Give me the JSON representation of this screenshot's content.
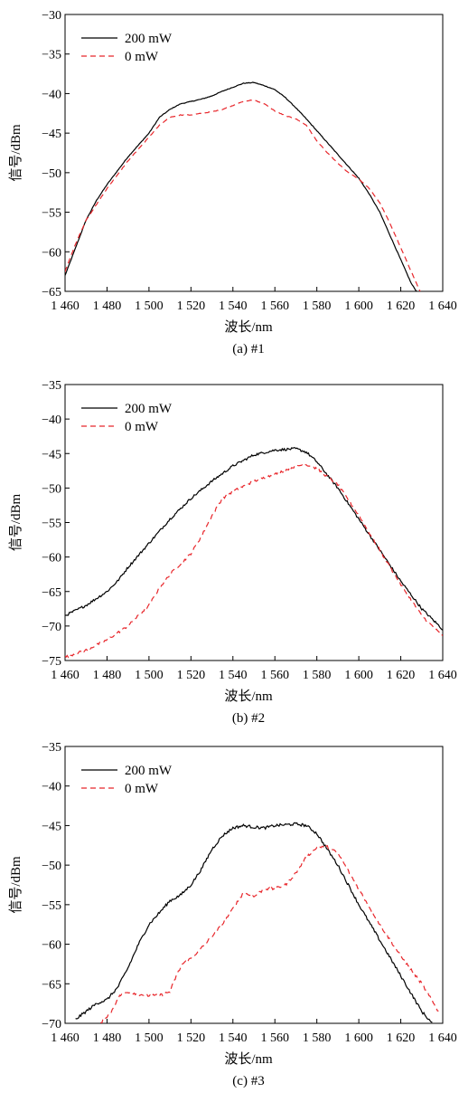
{
  "chart_data": [
    {
      "type": "line",
      "caption": "(a) #1",
      "xlabel": "波长/nm",
      "ylabel": "信号/dBm",
      "xlim": [
        1460,
        1640
      ],
      "ylim": [
        -65,
        -30
      ],
      "xticks": [
        "1 460",
        "1 480",
        "1 500",
        "1 520",
        "1 540",
        "1 560",
        "1 580",
        "1 600",
        "1 620",
        "1 640"
      ],
      "yticks": [
        "−30",
        "−35",
        "−40",
        "−45",
        "−50",
        "−55",
        "−60",
        "−65"
      ],
      "legend": "top-left",
      "series": [
        {
          "name": "200 mW",
          "color": "#000000",
          "dash": "solid",
          "x": [
            1460,
            1465,
            1470,
            1475,
            1480,
            1490,
            1500,
            1505,
            1510,
            1515,
            1520,
            1525,
            1530,
            1535,
            1540,
            1545,
            1550,
            1555,
            1560,
            1565,
            1570,
            1575,
            1580,
            1585,
            1590,
            1595,
            1600,
            1605,
            1610,
            1615,
            1620,
            1625,
            1630
          ],
          "y": [
            -63,
            -59.5,
            -56,
            -53.5,
            -51.5,
            -48,
            -45,
            -43,
            -42,
            -41.3,
            -41,
            -40.7,
            -40.3,
            -39.7,
            -39.2,
            -38.7,
            -38.6,
            -39,
            -39.5,
            -40.5,
            -41.8,
            -43.2,
            -44.7,
            -46.2,
            -47.7,
            -49.2,
            -50.7,
            -52.7,
            -55,
            -58,
            -61,
            -64,
            -66
          ]
        },
        {
          "name": "0 mW",
          "color": "#e8262b",
          "dash": "dashed",
          "x": [
            1460,
            1465,
            1470,
            1475,
            1480,
            1490,
            1500,
            1505,
            1510,
            1515,
            1520,
            1525,
            1530,
            1535,
            1540,
            1545,
            1550,
            1555,
            1560,
            1565,
            1570,
            1575,
            1580,
            1585,
            1590,
            1595,
            1600,
            1605,
            1610,
            1615,
            1620,
            1625,
            1630
          ],
          "y": [
            -62.5,
            -59,
            -56,
            -54,
            -52,
            -48.5,
            -45.5,
            -44,
            -43,
            -42.7,
            -42.7,
            -42.5,
            -42.3,
            -42,
            -41.5,
            -41,
            -40.8,
            -41.3,
            -42.2,
            -42.8,
            -43.2,
            -44,
            -46,
            -47.5,
            -48.8,
            -50,
            -50.8,
            -52,
            -53.8,
            -56.5,
            -59.5,
            -62.5,
            -65.5
          ]
        }
      ]
    },
    {
      "type": "line",
      "caption": "(b) #2",
      "xlabel": "波长/nm",
      "ylabel": "信号/dBm",
      "xlim": [
        1460,
        1640
      ],
      "ylim": [
        -75,
        -35
      ],
      "xticks": [
        "1 460",
        "1 480",
        "1 500",
        "1 520",
        "1 540",
        "1 560",
        "1 580",
        "1 600",
        "1 620",
        "1 640"
      ],
      "yticks": [
        "−35",
        "−40",
        "−45",
        "−50",
        "−55",
        "−60",
        "−65",
        "−70",
        "−75"
      ],
      "legend": "top-left",
      "series": [
        {
          "name": "200 mW",
          "color": "#000000",
          "dash": "solid",
          "x": [
            1460,
            1470,
            1480,
            1485,
            1490,
            1500,
            1510,
            1520,
            1530,
            1540,
            1550,
            1560,
            1570,
            1575,
            1580,
            1590,
            1600,
            1610,
            1620,
            1630,
            1640
          ],
          "y": [
            -68.5,
            -67,
            -65,
            -63.5,
            -61.5,
            -58,
            -54.5,
            -51.5,
            -49,
            -46.8,
            -45.2,
            -44.5,
            -44.3,
            -44.8,
            -46.2,
            -50,
            -54.5,
            -59,
            -63.5,
            -67.5,
            -70.5
          ]
        },
        {
          "name": "0 mW",
          "color": "#e8262b",
          "dash": "dashed",
          "x": [
            1460,
            1470,
            1480,
            1490,
            1500,
            1505,
            1510,
            1515,
            1520,
            1525,
            1530,
            1535,
            1540,
            1550,
            1560,
            1570,
            1575,
            1580,
            1590,
            1600,
            1610,
            1620,
            1630,
            1640
          ],
          "y": [
            -74.5,
            -73.5,
            -72,
            -70,
            -67,
            -64.5,
            -62.5,
            -61,
            -59.5,
            -57,
            -54,
            -51.5,
            -50.5,
            -49,
            -48,
            -46.8,
            -46.6,
            -47.2,
            -49.5,
            -54,
            -59,
            -64,
            -68.5,
            -71.5
          ]
        }
      ]
    },
    {
      "type": "line",
      "caption": "(c) #3",
      "xlabel": "波长/nm",
      "ylabel": "信号/dBm",
      "xlim": [
        1460,
        1640
      ],
      "ylim": [
        -70,
        -35
      ],
      "xticks": [
        "1 460",
        "1 480",
        "1 500",
        "1 520",
        "1 540",
        "1 560",
        "1 580",
        "1 600",
        "1 620",
        "1 640"
      ],
      "yticks": [
        "−35",
        "−40",
        "−45",
        "−50",
        "−55",
        "−60",
        "−65",
        "−70"
      ],
      "legend": "top-left",
      "series": [
        {
          "name": "200 mW",
          "color": "#000000",
          "dash": "solid",
          "x": [
            1465,
            1470,
            1475,
            1480,
            1485,
            1490,
            1495,
            1500,
            1505,
            1510,
            1515,
            1520,
            1525,
            1530,
            1535,
            1540,
            1545,
            1550,
            1555,
            1560,
            1565,
            1570,
            1575,
            1580,
            1590,
            1600,
            1610,
            1620,
            1630,
            1635
          ],
          "y": [
            -69.5,
            -68.5,
            -67.5,
            -67,
            -65.5,
            -63,
            -60,
            -57.5,
            -56,
            -54.5,
            -53.8,
            -52.5,
            -50.5,
            -48,
            -46.3,
            -45.3,
            -45,
            -45.2,
            -45.3,
            -45,
            -44.9,
            -44.8,
            -45,
            -46,
            -50,
            -55,
            -59.5,
            -64,
            -68.5,
            -70
          ]
        },
        {
          "name": "0 mW",
          "color": "#e8262b",
          "dash": "dashed",
          "x": [
            1477,
            1482,
            1486,
            1490,
            1495,
            1500,
            1505,
            1510,
            1513,
            1516,
            1520,
            1525,
            1530,
            1535,
            1540,
            1545,
            1550,
            1555,
            1560,
            1565,
            1570,
            1575,
            1580,
            1585,
            1590,
            1600,
            1610,
            1620,
            1630,
            1638
          ],
          "y": [
            -70,
            -68.5,
            -66.5,
            -66,
            -66.3,
            -66.5,
            -66.5,
            -66,
            -64,
            -62.5,
            -61.8,
            -60.5,
            -59,
            -57.5,
            -55.5,
            -53.5,
            -54,
            -53,
            -53,
            -52.5,
            -51,
            -49,
            -47.8,
            -47.7,
            -48.5,
            -53,
            -57.5,
            -61.5,
            -65,
            -68.5
          ]
        }
      ]
    }
  ]
}
